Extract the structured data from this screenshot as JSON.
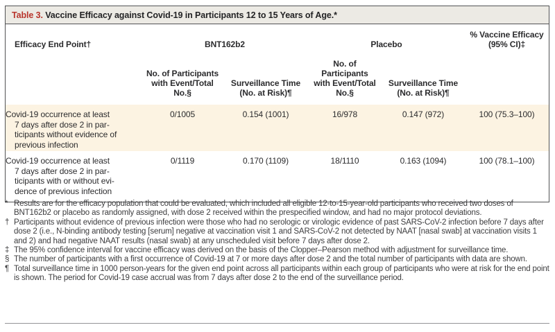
{
  "title": {
    "label": "Table 3.",
    "text": " Vaccine Efficacy against Covid-19 in Participants 12 to 15 Years of Age.*"
  },
  "table": {
    "endpoint_header": "Efficacy End Point†",
    "groups": {
      "bnt162b2": "BNT162b2",
      "placebo": "Placebo"
    },
    "efficacy_header": "% Vaccine Efficacy\n(95% CI)‡",
    "subheaders": {
      "events": "No. of Participants\nwith Event/Total\nNo.§",
      "surveillance": "Surveillance Time\n(No. at Risk)¶"
    },
    "rows": [
      {
        "endpoint": "Covid-19 occurrence at least\n7 days after dose 2 in par-\nticipants without evidence of\nprevious infection",
        "bnt_events": "0/1005",
        "bnt_surveillance": "0.154 (1001)",
        "placebo_events": "16/978",
        "placebo_surveillance": "0.147 (972)",
        "efficacy": "100 (75.3–100)"
      },
      {
        "endpoint": "Covid-19 occurrence at least\n7 days after dose 2 in par-\nticipants with or without evi-\ndence of previous infection",
        "bnt_events": "0/1119",
        "bnt_surveillance": "0.170 (1109)",
        "placebo_events": "18/1110",
        "placebo_surveillance": "0.163 (1094)",
        "efficacy": "100 (78.1–100)"
      }
    ]
  },
  "footnotes": [
    {
      "symbol": "*",
      "text": "Results are for the efficacy population that could be evaluated, which included all eligible 12-to-15-year-old participants who received two doses of BNT162b2 or placebo as randomly assigned, with dose 2 received within the prespecified window, and had no major protocol deviations."
    },
    {
      "symbol": "†",
      "text": "Participants without evidence of previous infection were those who had no serologic or virologic evidence of past SARS-CoV-2 infection before 7 days after dose 2 (i.e., N-binding antibody testing [serum] negative at vaccination visit 1 and SARS-CoV-2 not detected by NAAT [nasal swab] at vaccination visits 1 and 2) and had negative NAAT results (nasal swab) at any unscheduled visit before 7 days after dose 2."
    },
    {
      "symbol": "‡",
      "text": "The 95% confidence interval for vaccine efficacy was derived on the basis of the Clopper–Pearson method with adjustment for surveillance time."
    },
    {
      "symbol": "§",
      "text": "The number of participants with a first occurrence of Covid-19 at 7 or more days after dose 2 and the total number of participants with data are shown."
    },
    {
      "symbol": "¶",
      "text": "Total surveillance time in 1000 person-years for the given end point across all participants within each group of participants who were at risk for the end point is shown. The period for Covid-19 case accrual was from 7 days after dose 2 to the end of the surveillance period."
    }
  ],
  "colors": {
    "title_label_red": "#b8352c",
    "title_bar_bg": "#eceae4",
    "row_highlight": "#fcf3e2",
    "table_border": "#515254",
    "body_text": "#2b2b2d"
  }
}
